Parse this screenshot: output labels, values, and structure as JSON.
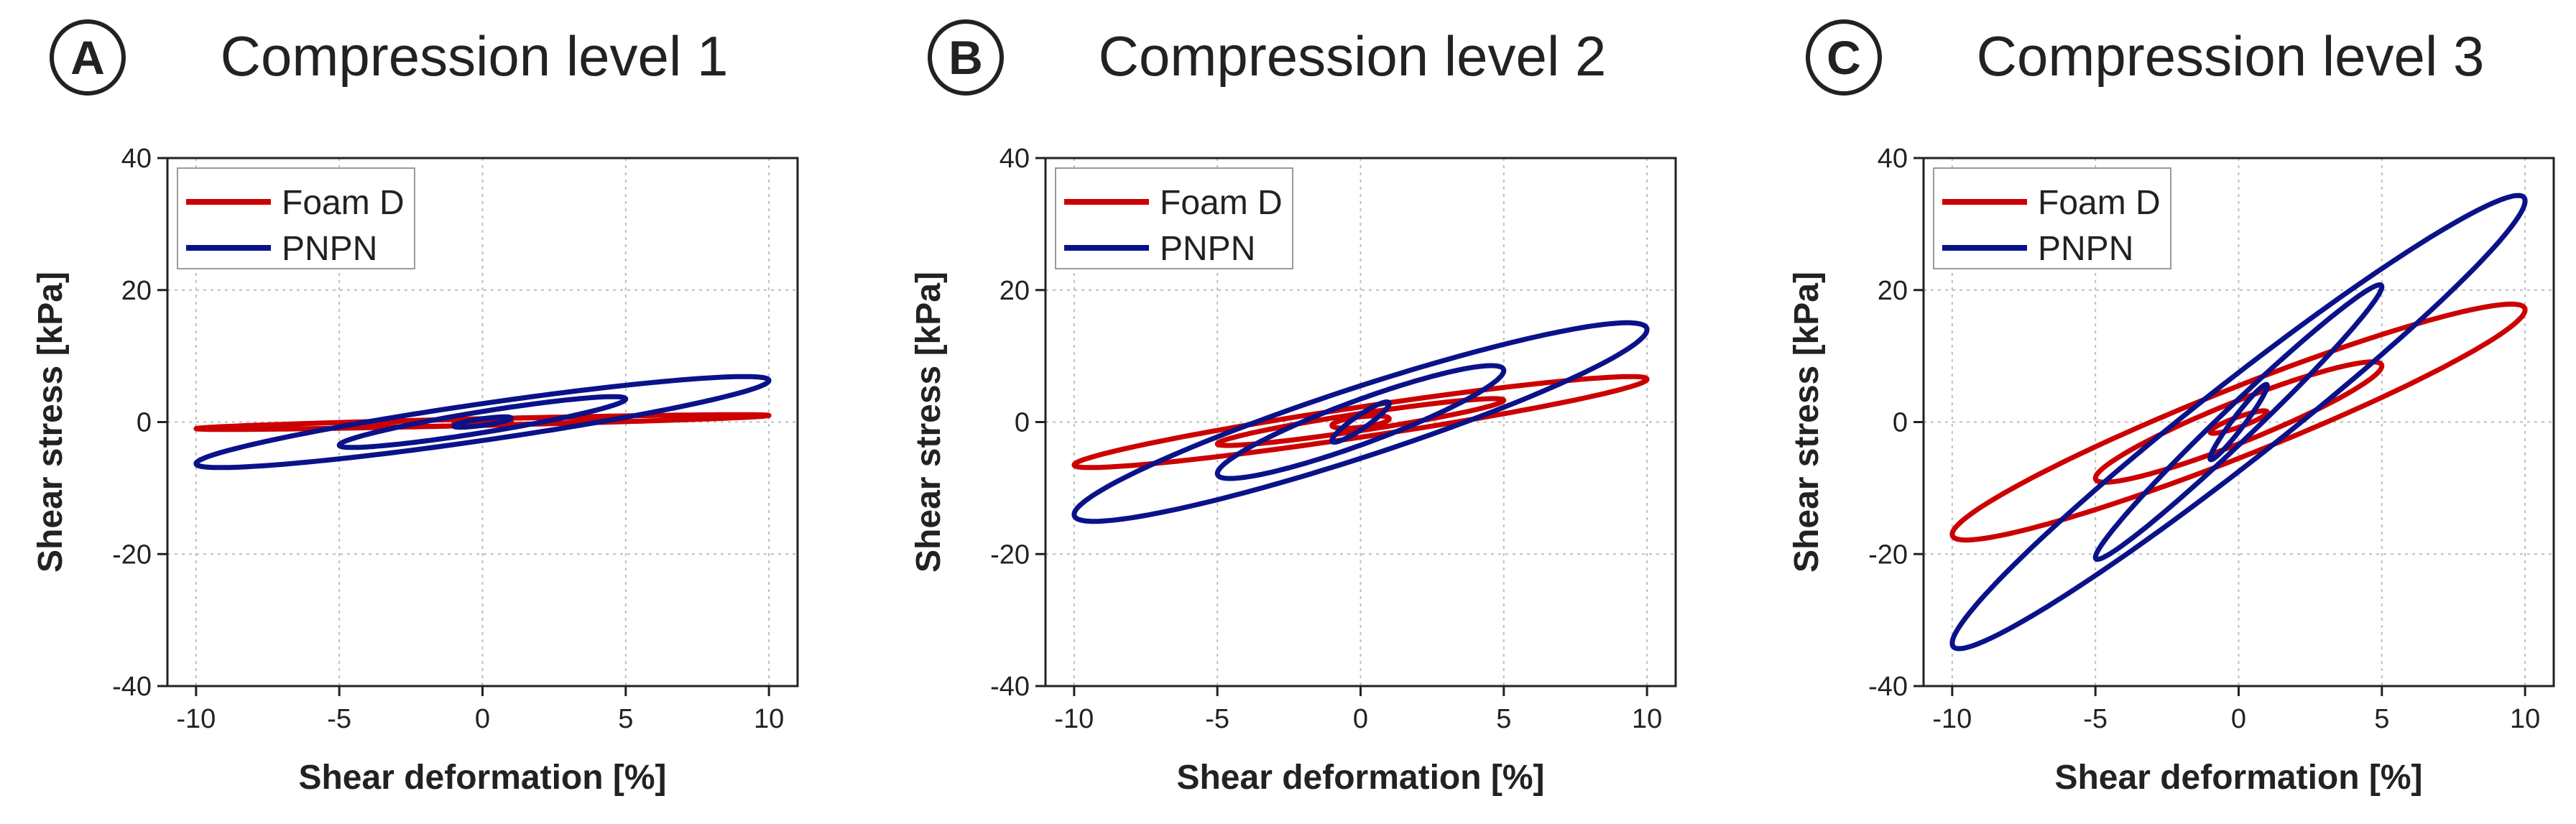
{
  "figure": {
    "colors": {
      "foam": "#cc0000",
      "pnpn": "#0a128a",
      "grid": "#bdbdbd",
      "axis": "#222222"
    }
  },
  "chart_data": [
    {
      "type": "line",
      "panel": "A",
      "title": "Compression level 1",
      "xlabel": "Shear deformation [%]",
      "ylabel": "Shear stress [kPa]",
      "xlim": [
        -11,
        11
      ],
      "ylim": [
        -40,
        40
      ],
      "xticks": [
        -10,
        -5,
        0,
        5,
        10
      ],
      "yticks": [
        -40,
        -20,
        0,
        20,
        40
      ],
      "grid": true,
      "legend_position": "top-left",
      "series": [
        {
          "name": "Foam D",
          "color": "#cc0000",
          "loops": [
            {
              "amp": 1,
              "a": 0.1,
              "b": 0.2
            },
            {
              "amp": 5,
              "a": 0.5,
              "b": 0.5
            },
            {
              "amp": 10,
              "a": 1.0,
              "b": 0.5
            }
          ]
        },
        {
          "name": "PNPN",
          "color": "#0a128a",
          "loops": [
            {
              "amp": 1,
              "a": 0.6,
              "b": 0.5
            },
            {
              "amp": 5,
              "a": 3.5,
              "b": 1.6
            },
            {
              "amp": 10,
              "a": 6.3,
              "b": 2.8
            }
          ]
        }
      ]
    },
    {
      "type": "line",
      "panel": "B",
      "title": "Compression level 2",
      "xlabel": "Shear deformation [%]",
      "ylabel": "Shear stress [kPa]",
      "xlim": [
        -11,
        11
      ],
      "ylim": [
        -40,
        40
      ],
      "xticks": [
        -10,
        -5,
        0,
        5,
        10
      ],
      "yticks": [
        -40,
        -20,
        0,
        20,
        40
      ],
      "grid": true,
      "legend_position": "top-left",
      "series": [
        {
          "name": "Foam D",
          "color": "#cc0000",
          "loops": [
            {
              "amp": 1,
              "a": 0.5,
              "b": 0.8
            },
            {
              "amp": 5,
              "a": 3.3,
              "b": 1.3
            },
            {
              "amp": 10,
              "a": 6.5,
              "b": 2.3
            }
          ]
        },
        {
          "name": "PNPN",
          "color": "#0a128a",
          "loops": [
            {
              "amp": 1,
              "a": 2.8,
              "b": 1.2
            },
            {
              "amp": 5,
              "a": 7.8,
              "b": 3.5
            },
            {
              "amp": 10,
              "a": 14.0,
              "b": 5.5
            }
          ]
        }
      ]
    },
    {
      "type": "line",
      "panel": "C",
      "title": "Compression level 3",
      "xlabel": "Shear deformation [%]",
      "ylabel": "Shear stress [kPa]",
      "xlim": [
        -11,
        11
      ],
      "ylim": [
        -40,
        40
      ],
      "xticks": [
        -10,
        -5,
        0,
        5,
        10
      ],
      "yticks": [
        -40,
        -20,
        0,
        20,
        40
      ],
      "grid": true,
      "legend_position": "top-left",
      "series": [
        {
          "name": "Foam D",
          "color": "#cc0000",
          "loops": [
            {
              "amp": 1,
              "a": 1.5,
              "b": 0.8
            },
            {
              "amp": 5,
              "a": 8.5,
              "b": 3.3
            },
            {
              "amp": 10,
              "a": 17.0,
              "b": 5.5
            }
          ]
        },
        {
          "name": "PNPN",
          "color": "#0a128a",
          "loops": [
            {
              "amp": 1,
              "a": 5.5,
              "b": 1.5
            },
            {
              "amp": 5,
              "a": 20.5,
              "b": 3.5
            },
            {
              "amp": 10,
              "a": 33.5,
              "b": 7.5
            }
          ]
        }
      ]
    }
  ]
}
